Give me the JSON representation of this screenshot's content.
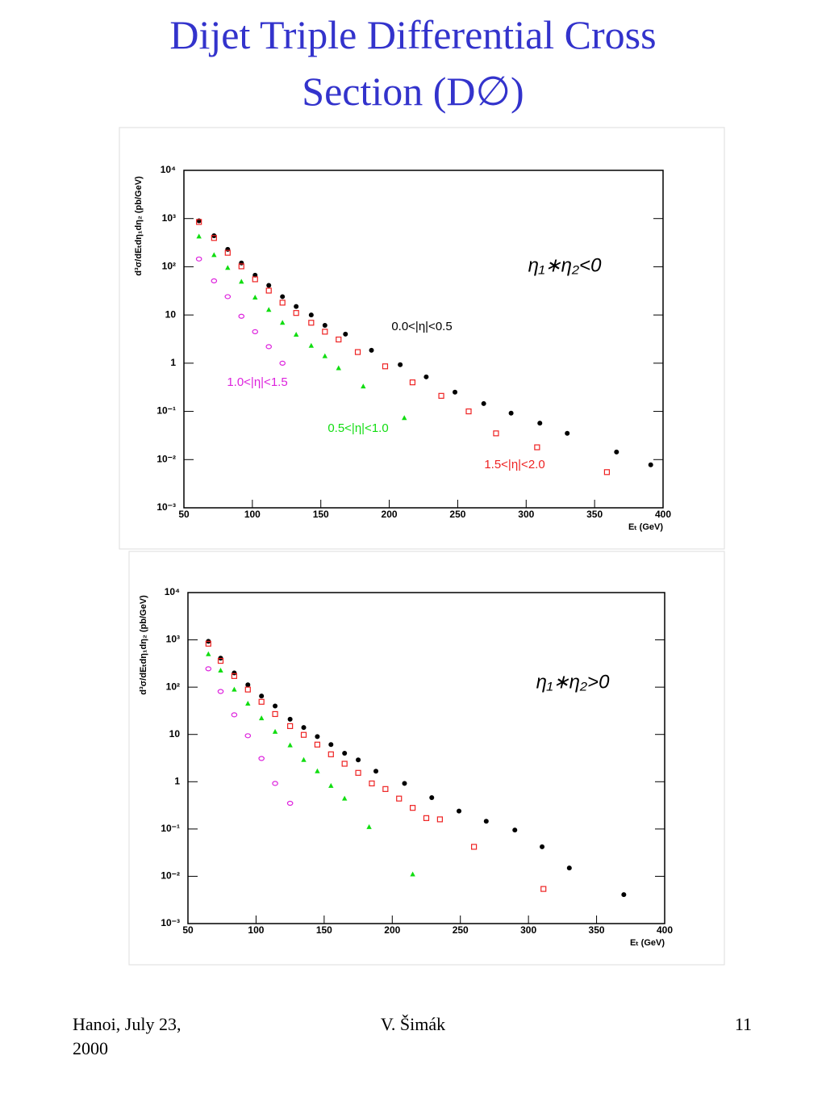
{
  "title": "Dijet Triple Differential Cross Section (D∅)",
  "footer": {
    "left": "Hanoi, July 23, 2000",
    "center": "V. Šimák",
    "right": "11"
  },
  "chart_data": [
    {
      "type": "scatter",
      "log_y": true,
      "y_label": "d³σ/dEₜdη₁dη₂ (pb/GeV)",
      "x_label": "Eₜ (GeV)",
      "annotation": "η₁∗η₂<0",
      "xlim": [
        50,
        400
      ],
      "xticks": [
        50,
        100,
        150,
        200,
        250,
        300,
        350,
        400
      ],
      "ylim": [
        0.001,
        10000
      ],
      "yticks": [
        {
          "value": 0.001,
          "label": "10⁻³"
        },
        {
          "value": 0.01,
          "label": "10⁻²"
        },
        {
          "value": 0.1,
          "label": "10⁻¹"
        },
        1,
        10,
        {
          "value": 100,
          "label": "10²"
        },
        {
          "value": 1000,
          "label": "10³"
        },
        {
          "value": 10000,
          "label": "10⁴"
        }
      ],
      "series": [
        {
          "name": "0.0<|η|<0.5",
          "color": "#000000",
          "marker": "dot",
          "x": [
            61,
            72,
            82,
            92,
            102,
            112,
            122,
            132,
            143,
            153,
            168,
            187,
            208,
            227,
            248,
            269,
            289,
            310,
            330,
            366,
            391
          ],
          "values": [
            900,
            440,
            230,
            120,
            67,
            41,
            24,
            15,
            10,
            6.1,
            4.0,
            1.85,
            0.93,
            0.52,
            0.25,
            0.145,
            0.092,
            0.057,
            0.035,
            0.0144,
            0.0078
          ]
        },
        {
          "name": "1.5<|η|<2.0",
          "color": "#ee2222",
          "marker": "square",
          "x": [
            61,
            72,
            82,
            92,
            102,
            112,
            122,
            132,
            143,
            153,
            163,
            177,
            197,
            217,
            238,
            258,
            278,
            308,
            359
          ],
          "values": [
            850,
            395,
            195,
            102,
            55,
            32,
            18,
            11,
            6.9,
            4.5,
            3.1,
            1.7,
            0.86,
            0.4,
            0.21,
            0.1,
            0.035,
            0.018,
            0.0055
          ]
        },
        {
          "name": "0.5<|η|<1.0",
          "color": "#11dd11",
          "marker": "triangle",
          "x": [
            61,
            72,
            82,
            92,
            102,
            112,
            122,
            132,
            143,
            153,
            163,
            181,
            211
          ],
          "values": [
            425,
            175,
            95,
            49,
            23,
            12.8,
            6.9,
            3.9,
            2.3,
            1.4,
            0.79,
            0.33,
            0.073
          ]
        },
        {
          "name": "1.0<|η|<1.5",
          "color": "#dd22dd",
          "marker": "ring",
          "x": [
            61,
            72,
            82,
            92,
            102,
            112,
            122
          ],
          "values": [
            145,
            51,
            24,
            9.4,
            4.5,
            2.2,
            1.0
          ]
        }
      ]
    },
    {
      "type": "scatter",
      "log_y": true,
      "y_label": "d³σ/dEₜdη₁dη₂ (pb/GeV)",
      "x_label": "Eₜ (GeV)",
      "annotation": "η₁∗η₂>0",
      "xlim": [
        50,
        400
      ],
      "xticks": [
        50,
        100,
        150,
        200,
        250,
        300,
        350,
        400
      ],
      "ylim": [
        0.001,
        10000
      ],
      "yticks": [
        {
          "value": 0.001,
          "label": "10⁻³"
        },
        {
          "value": 0.01,
          "label": "10⁻²"
        },
        {
          "value": 0.1,
          "label": "10⁻¹"
        },
        1,
        10,
        {
          "value": 100,
          "label": "10²"
        },
        {
          "value": 1000,
          "label": "10³"
        },
        {
          "value": 10000,
          "label": "10⁴"
        }
      ],
      "series": [
        {
          "color": "#000000",
          "marker": "dot",
          "x": [
            65,
            74,
            84,
            94,
            104,
            114,
            125,
            135,
            145,
            155,
            165,
            175,
            188,
            209,
            229,
            249,
            269,
            290,
            310,
            330,
            370
          ],
          "values": [
            930,
            410,
            200,
            112,
            65,
            40,
            21,
            14,
            9.0,
            6.1,
            4.0,
            2.9,
            1.67,
            0.92,
            0.46,
            0.24,
            0.146,
            0.095,
            0.042,
            0.015,
            0.0041
          ]
        },
        {
          "color": "#ee2222",
          "marker": "square",
          "x": [
            65,
            74,
            84,
            94,
            104,
            114,
            125,
            135,
            145,
            155,
            165,
            175,
            185,
            195,
            205,
            215,
            225,
            235,
            260,
            311
          ],
          "values": [
            830,
            360,
            172,
            89,
            49,
            27,
            15,
            9.8,
            6.1,
            3.8,
            2.4,
            1.54,
            0.92,
            0.7,
            0.44,
            0.28,
            0.17,
            0.16,
            0.042,
            0.0054
          ]
        },
        {
          "color": "#11dd11",
          "marker": "triangle",
          "x": [
            65,
            74,
            84,
            94,
            104,
            114,
            125,
            135,
            145,
            155,
            165,
            183,
            215
          ],
          "values": [
            500,
            225,
            89,
            45,
            22,
            11.4,
            5.9,
            2.9,
            1.67,
            0.82,
            0.44,
            0.11,
            0.011
          ]
        },
        {
          "color": "#dd22dd",
          "marker": "ring",
          "x": [
            65,
            74,
            84,
            94,
            104,
            114,
            125
          ],
          "values": [
            245,
            81,
            26,
            9.4,
            3.1,
            0.92,
            0.35
          ]
        }
      ]
    }
  ]
}
